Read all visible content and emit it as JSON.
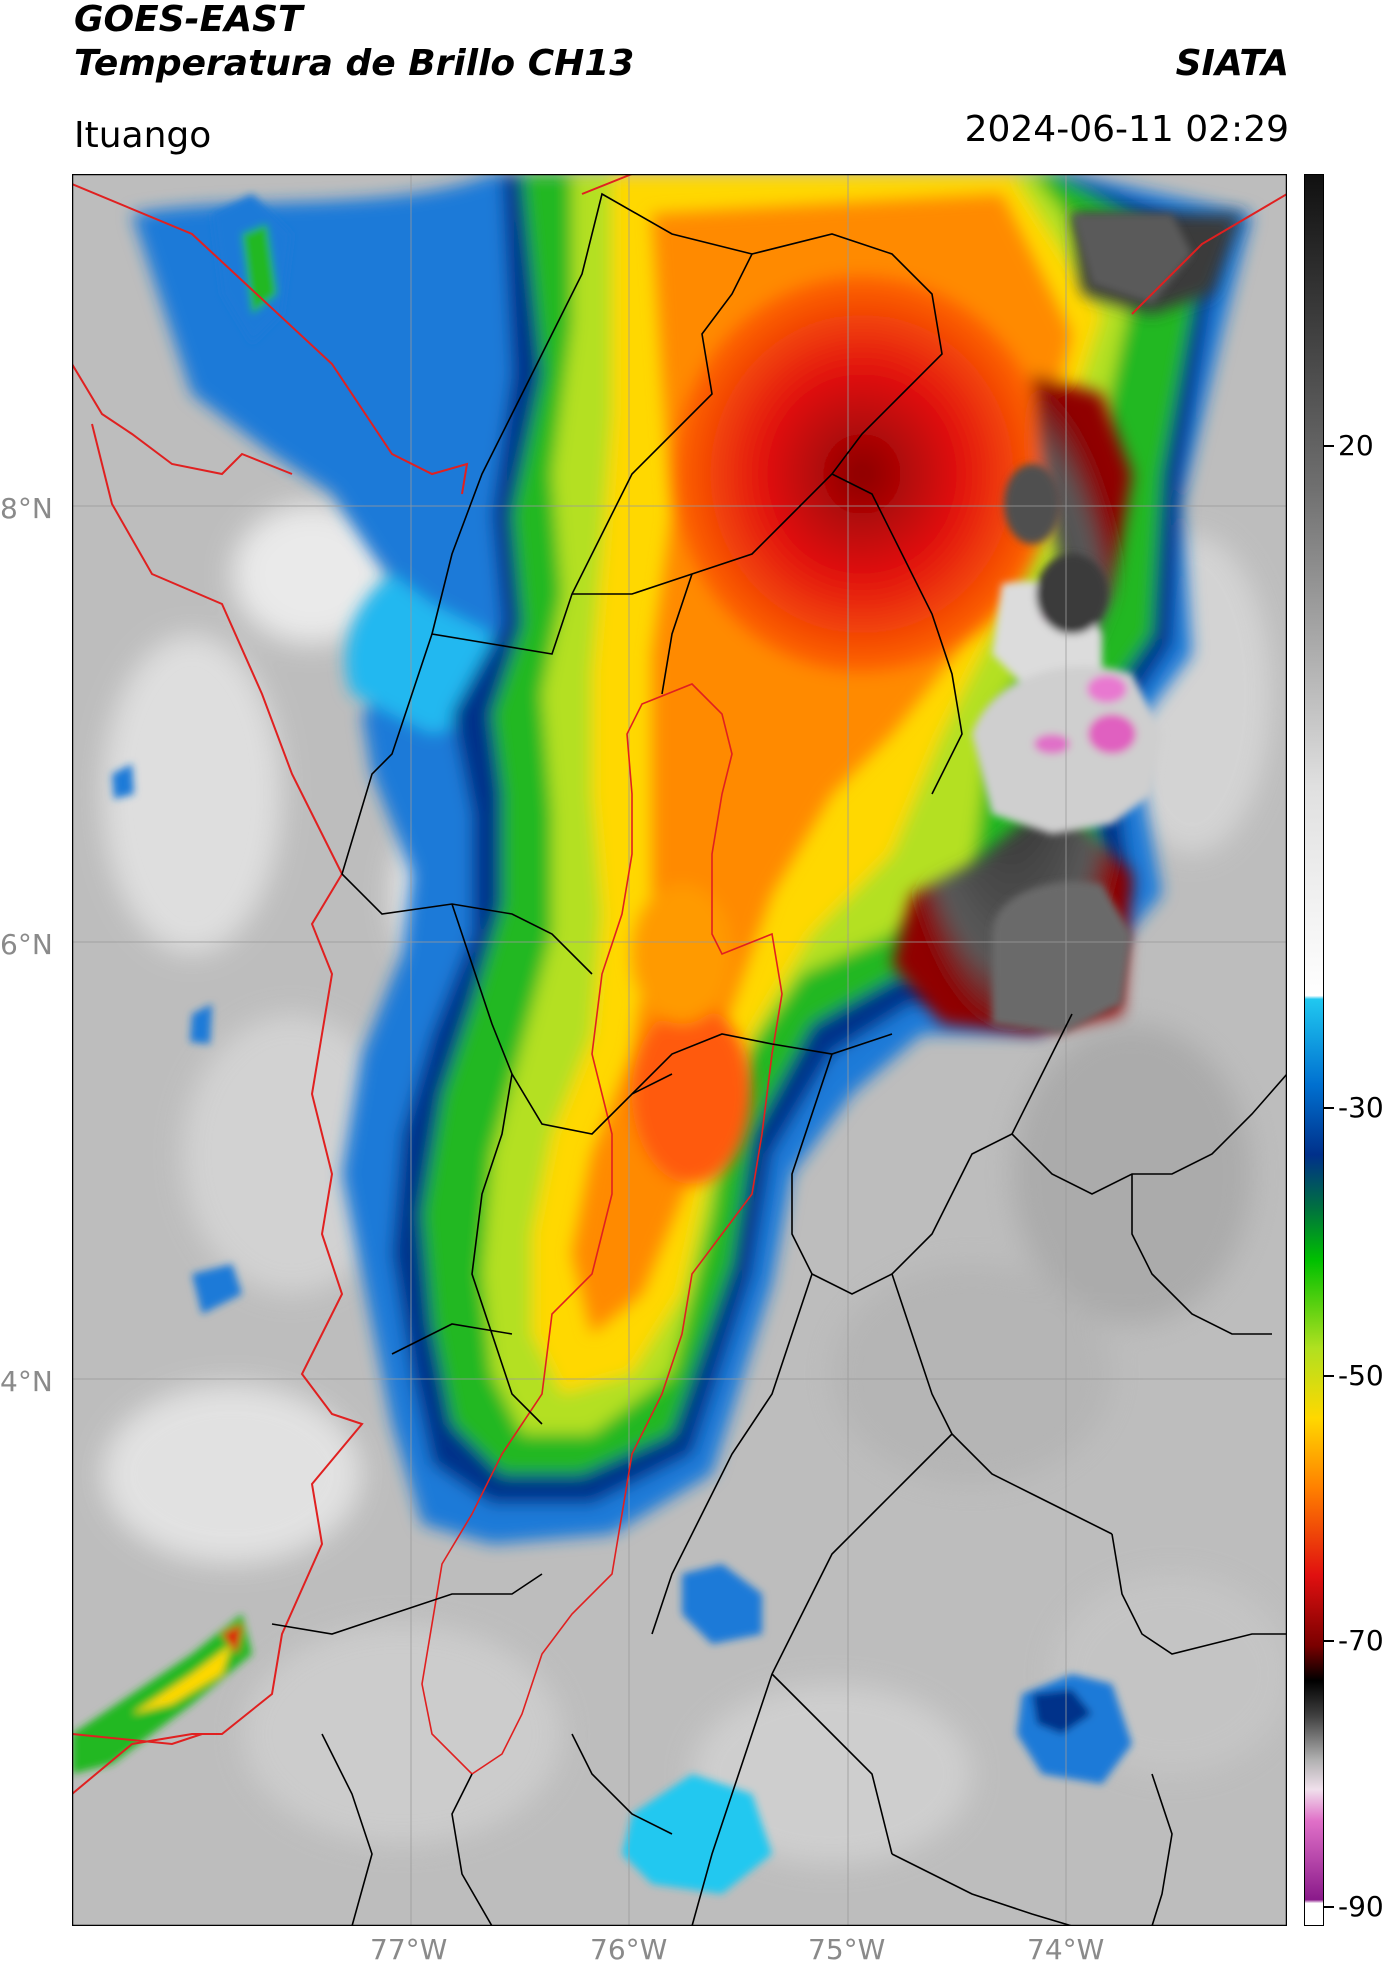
{
  "header": {
    "title_line1": "GOES-EAST",
    "title_line2": "Temperatura de Brillo CH13",
    "organization": "SIATA",
    "location": "Ituango",
    "datetime": "2024-06-11 02:29"
  },
  "map": {
    "lat_labels": [
      "8°N",
      "6°N",
      "4°N"
    ],
    "lon_labels": [
      "77°W",
      "76°W",
      "75°W",
      "74°W"
    ],
    "colors": {
      "national_border": "#e02020",
      "admin_border": "#000000",
      "gridline": "#9a9a9a"
    }
  },
  "colorbar": {
    "tick_labels": [
      "20",
      "-30",
      "-50",
      "-70",
      "-90"
    ],
    "colors": [
      "#ffffff",
      "#8a1a8a",
      "#e070c8",
      "#f0e0ec",
      "#b0b0b0",
      "#404040",
      "#000000",
      "#7a0000",
      "#e01010",
      "#ff8000",
      "#ffd800",
      "#b0e020",
      "#00c000",
      "#007040",
      "#00308a",
      "#0070d0",
      "#20c8f0",
      "#ffffff",
      "#e0e0e0",
      "#707070",
      "#101010"
    ]
  }
}
